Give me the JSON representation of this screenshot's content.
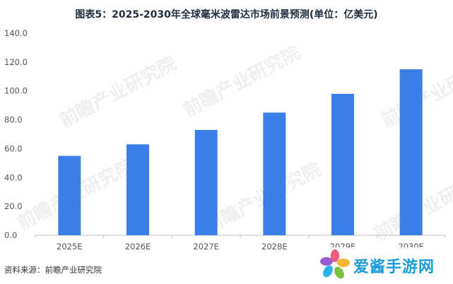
{
  "header": {
    "title": "图表5：2025-2030年全球毫米波雷达市场前景预测(单位：亿美元)"
  },
  "footer": {
    "source": "资料来源：前瞻产业研究院"
  },
  "watermark": {
    "text": "前瞻产业研究院"
  },
  "overlay": {
    "brand": "爱酱手游网"
  },
  "colors": {
    "bar": "#3a7ee8",
    "axis": "#bfbfbf",
    "tick_text": "#555555"
  },
  "chart_data": {
    "type": "bar",
    "title": "图表5：2025-2030年全球毫米波雷达市场前景预测(单位：亿美元)",
    "categories": [
      "2025E",
      "2026E",
      "2027E",
      "2028E",
      "2029E",
      "2030E"
    ],
    "values": [
      55,
      63,
      73,
      85,
      98,
      115
    ],
    "ylim": [
      0,
      140
    ],
    "yticks": [
      0,
      20,
      40,
      60,
      80,
      100,
      120,
      140
    ],
    "ytick_labels": [
      "0.0",
      "20.0",
      "40.0",
      "60.0",
      "80.0",
      "100.0",
      "120.0",
      "140.0"
    ],
    "xlabel": "",
    "ylabel": "",
    "grid": false,
    "legend": "none"
  }
}
